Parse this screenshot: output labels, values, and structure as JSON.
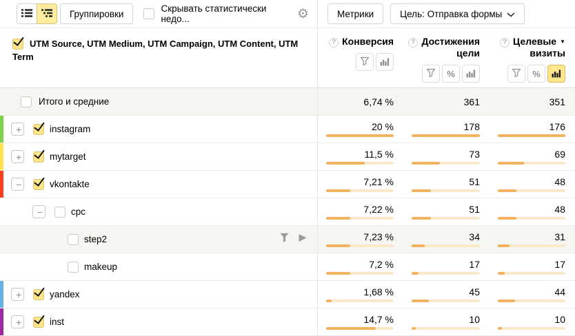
{
  "toolbar": {
    "groupings_button": "Группировки",
    "hide_insignificant_label": "Скрывать статистически недо...",
    "metrics_button": "Метрики",
    "goal_selector": "Цель: Отправка формы"
  },
  "colors": {
    "accent_yellow": "#ffec9e",
    "bar_fill": "#f3b25f",
    "bar_track": "#fae8ca",
    "stripe_instagram": "#7dd14c",
    "stripe_mytarget": "#ffe04d",
    "stripe_vkontakte": "#fb3f1d",
    "stripe_yandex": "#63b3e4",
    "stripe_inst": "#a227a2"
  },
  "table": {
    "dimensions_title": "UTM Source, UTM Medium, UTM Campaign, UTM Content, UTM Term",
    "columns": [
      {
        "label": "Конверсия",
        "sorted": false,
        "tools": [
          "filter",
          "bars"
        ],
        "active": null
      },
      {
        "label": "Достижения цели",
        "sorted": false,
        "tools": [
          "filter",
          "percent",
          "bars"
        ],
        "active": null
      },
      {
        "label": "Целевые визиты",
        "sorted": true,
        "tools": [
          "filter",
          "percent",
          "bars"
        ],
        "active": "bars"
      }
    ],
    "totals_row": {
      "label": "Итого и средние",
      "values": [
        "6,74 %",
        "361",
        "351"
      ]
    },
    "rows": [
      {
        "label": "instagram",
        "level": 0,
        "stripe": "#7dd14c",
        "checked": true,
        "expander": "plus",
        "highlighted": false,
        "row_actions": false,
        "cells": [
          {
            "v": "20 %",
            "fill": 100
          },
          {
            "v": "178",
            "fill": 100
          },
          {
            "v": "176",
            "fill": 100
          }
        ]
      },
      {
        "label": "mytarget",
        "level": 0,
        "stripe": "#ffe04d",
        "checked": true,
        "expander": "plus",
        "highlighted": false,
        "row_actions": false,
        "cells": [
          {
            "v": "11,5 %",
            "fill": 57.5
          },
          {
            "v": "73",
            "fill": 41
          },
          {
            "v": "69",
            "fill": 39
          }
        ]
      },
      {
        "label": "vkontakte",
        "level": 0,
        "stripe": "#fb3f1d",
        "checked": true,
        "expander": "minus",
        "highlighted": false,
        "row_actions": false,
        "cells": [
          {
            "v": "7,21 %",
            "fill": 36
          },
          {
            "v": "51",
            "fill": 28.7
          },
          {
            "v": "48",
            "fill": 27.3
          }
        ]
      },
      {
        "label": "cpc",
        "level": 1,
        "stripe": null,
        "checked": false,
        "expander": "minus",
        "highlighted": false,
        "row_actions": false,
        "cells": [
          {
            "v": "7,22 %",
            "fill": 36.1
          },
          {
            "v": "51",
            "fill": 28.7
          },
          {
            "v": "48",
            "fill": 27.3
          }
        ]
      },
      {
        "label": "step2",
        "level": 2,
        "stripe": null,
        "checked": false,
        "expander": null,
        "highlighted": true,
        "row_actions": true,
        "cells": [
          {
            "v": "7,23 %",
            "fill": 36.2
          },
          {
            "v": "34",
            "fill": 19.1
          },
          {
            "v": "31",
            "fill": 17.6
          }
        ]
      },
      {
        "label": "makeup",
        "level": 2,
        "stripe": null,
        "checked": false,
        "expander": null,
        "highlighted": false,
        "row_actions": false,
        "cells": [
          {
            "v": "7,2 %",
            "fill": 36
          },
          {
            "v": "17",
            "fill": 9.6
          },
          {
            "v": "17",
            "fill": 9.7
          }
        ]
      },
      {
        "label": "yandex",
        "level": 0,
        "stripe": "#63b3e4",
        "checked": true,
        "expander": "plus",
        "highlighted": false,
        "row_actions": false,
        "cells": [
          {
            "v": "1,68 %",
            "fill": 8.4
          },
          {
            "v": "45",
            "fill": 25.3
          },
          {
            "v": "44",
            "fill": 25
          }
        ]
      },
      {
        "label": "inst",
        "level": 0,
        "stripe": "#a227a2",
        "checked": true,
        "expander": "plus",
        "highlighted": false,
        "row_actions": false,
        "cells": [
          {
            "v": "14,7 %",
            "fill": 73.5
          },
          {
            "v": "10",
            "fill": 5.6
          },
          {
            "v": "10",
            "fill": 5.7
          }
        ]
      }
    ]
  }
}
